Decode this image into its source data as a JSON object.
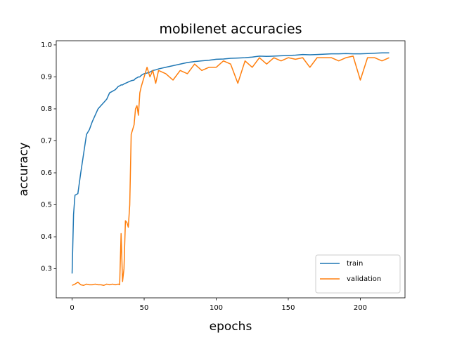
{
  "chart_data": {
    "type": "line",
    "title": "mobilenet accuracies",
    "x_label": "epochs",
    "y_label": "accuracy",
    "x": [
      0,
      1,
      2,
      4,
      6,
      8,
      10,
      12,
      14,
      16,
      18,
      20,
      22,
      24,
      26,
      28,
      30,
      32,
      33,
      34,
      35,
      36,
      37,
      38,
      39,
      40,
      41,
      43,
      44,
      45,
      46,
      47,
      48,
      50,
      52,
      54,
      56,
      58,
      60,
      65,
      70,
      75,
      80,
      85,
      90,
      95,
      100,
      105,
      110,
      115,
      120,
      125,
      130,
      135,
      140,
      145,
      150,
      155,
      160,
      165,
      170,
      175,
      180,
      185,
      190,
      195,
      200,
      205,
      210,
      215,
      220
    ],
    "series": [
      {
        "name": "train",
        "color": "#1f77b4",
        "values": [
          0.285,
          0.47,
          0.53,
          0.535,
          0.6,
          0.66,
          0.72,
          0.735,
          0.76,
          0.78,
          0.8,
          0.81,
          0.82,
          0.83,
          0.85,
          0.855,
          0.86,
          0.87,
          0.872,
          0.875,
          0.875,
          0.878,
          0.88,
          0.882,
          0.884,
          0.886,
          0.888,
          0.89,
          0.895,
          0.897,
          0.9,
          0.9,
          0.905,
          0.91,
          0.912,
          0.915,
          0.92,
          0.922,
          0.925,
          0.93,
          0.935,
          0.94,
          0.945,
          0.948,
          0.95,
          0.952,
          0.955,
          0.956,
          0.958,
          0.959,
          0.96,
          0.962,
          0.965,
          0.964,
          0.965,
          0.966,
          0.967,
          0.968,
          0.97,
          0.969,
          0.97,
          0.971,
          0.972,
          0.972,
          0.973,
          0.972,
          0.972,
          0.973,
          0.974,
          0.975,
          0.975
        ]
      },
      {
        "name": "validation",
        "color": "#ff7f0e",
        "values": [
          0.248,
          0.25,
          0.252,
          0.258,
          0.25,
          0.248,
          0.252,
          0.25,
          0.25,
          0.252,
          0.25,
          0.25,
          0.248,
          0.252,
          0.25,
          0.252,
          0.25,
          0.252,
          0.25,
          0.41,
          0.26,
          0.3,
          0.45,
          0.445,
          0.43,
          0.5,
          0.72,
          0.75,
          0.8,
          0.81,
          0.78,
          0.85,
          0.87,
          0.9,
          0.93,
          0.9,
          0.92,
          0.88,
          0.92,
          0.91,
          0.89,
          0.92,
          0.91,
          0.94,
          0.92,
          0.93,
          0.93,
          0.95,
          0.94,
          0.88,
          0.95,
          0.93,
          0.96,
          0.94,
          0.96,
          0.95,
          0.96,
          0.955,
          0.96,
          0.93,
          0.96,
          0.96,
          0.96,
          0.95,
          0.96,
          0.965,
          0.89,
          0.96,
          0.96,
          0.95,
          0.96
        ]
      }
    ],
    "xlim": [
      -11,
      231
    ],
    "xticks": [
      0,
      50,
      100,
      150,
      200
    ],
    "ylim": [
      0.209,
      1.013
    ],
    "yticks": [
      0.3,
      0.4,
      0.5,
      0.6,
      0.7,
      0.8,
      0.9,
      {
        "value": 1,
        "label": "1.0"
      }
    ],
    "legend": "lower right"
  }
}
